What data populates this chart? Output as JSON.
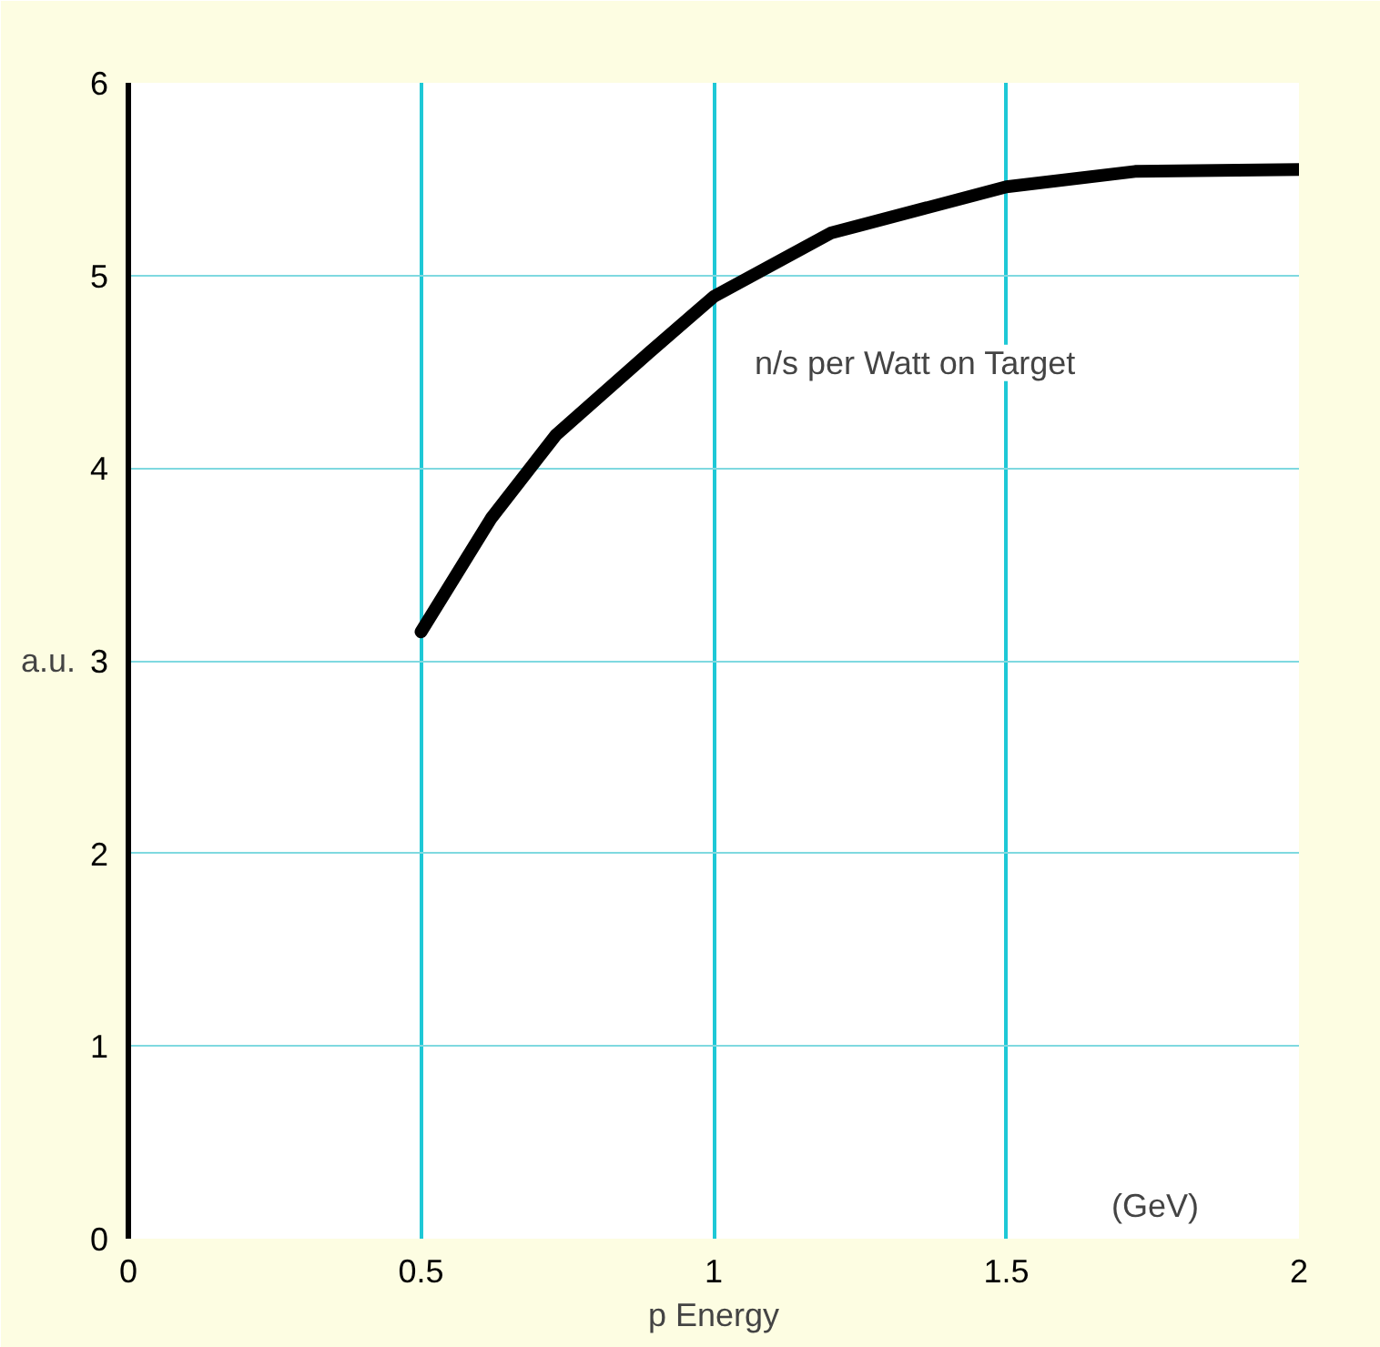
{
  "chart_data": {
    "type": "line",
    "xlabel": "p Energy",
    "ylabel": "a.u.",
    "annotations": [
      "(GeV)"
    ],
    "x": [
      0.5,
      0.62,
      0.73,
      0.89,
      1.0,
      1.2,
      1.5,
      1.72,
      2.0
    ],
    "series": [
      {
        "name": "n/s per Watt on  Target",
        "color": "#000000",
        "values": [
          3.15,
          3.74,
          4.17,
          4.6,
          4.89,
          5.22,
          5.46,
          5.54,
          5.55
        ]
      }
    ],
    "xlim": [
      0,
      2
    ],
    "ylim": [
      0,
      6
    ],
    "xticks": [
      0,
      0.5,
      1,
      1.5,
      2
    ],
    "yticks": [
      0,
      1,
      2,
      3,
      4,
      5,
      6
    ],
    "grid": true,
    "marker": "none",
    "line_style": "solid"
  }
}
